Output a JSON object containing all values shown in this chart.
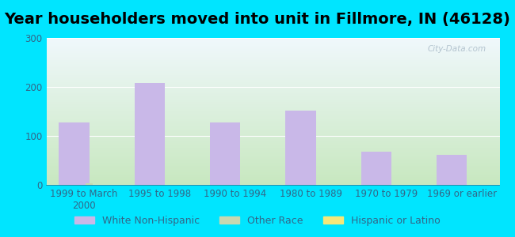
{
  "title": "Year householders moved into unit in Fillmore, IN (46128)",
  "categories": [
    "1999 to March\n2000",
    "1995 to 1998",
    "1990 to 1994",
    "1980 to 1989",
    "1970 to 1979",
    "1969 or earlier"
  ],
  "white_non_hispanic": [
    127,
    208,
    128,
    151,
    68,
    61
  ],
  "other_race": [
    4,
    0,
    0,
    0,
    0,
    0
  ],
  "hispanic_or_latino": [
    0,
    0,
    0,
    0,
    0,
    0
  ],
  "bar_color_white": "#c9b8e8",
  "bar_color_other": "#c8d8b0",
  "bar_color_hispanic": "#f5e87a",
  "background_outer": "#00e5ff",
  "plot_bg_topleft": "#dff0ec",
  "plot_bg_topright": "#f0f8f8",
  "plot_bg_bottomleft": "#c8e8c0",
  "plot_bg_bottomright": "#e8f4ee",
  "ylim": [
    0,
    300
  ],
  "yticks": [
    0,
    100,
    200,
    300
  ],
  "title_fontsize": 14,
  "tick_fontsize": 8.5,
  "legend_fontsize": 9,
  "watermark": "City-Data.com",
  "tick_color": "#336688",
  "grid_color": "#ccddcc"
}
